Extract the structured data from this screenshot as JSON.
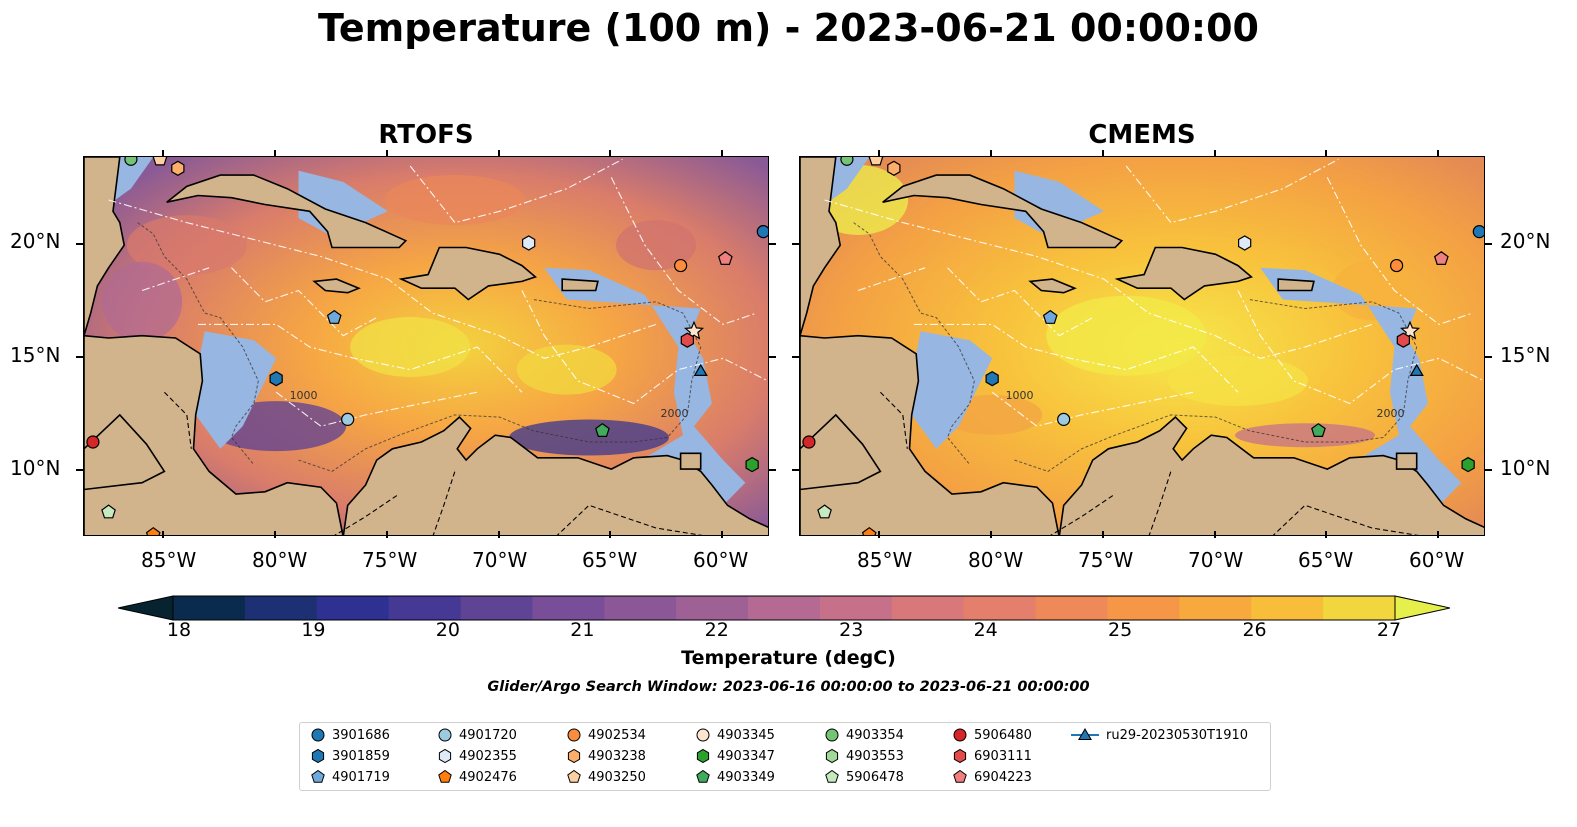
{
  "title": "Temperature (100 m) - 2023-06-21 00:00:00",
  "panels": [
    {
      "title": "RTOFS"
    },
    {
      "title": "CMEMS"
    }
  ],
  "axes": {
    "lon_ticks": [
      "85°W",
      "80°W",
      "75°W",
      "70°W",
      "65°W",
      "60°W"
    ],
    "lat_ticks": [
      "20°N",
      "15°N",
      "10°N"
    ]
  },
  "colorbar": {
    "label": "Temperature (degC)",
    "ticks": [
      "18",
      "19",
      "20",
      "21",
      "22",
      "23",
      "24",
      "25",
      "26",
      "27"
    ],
    "colors": [
      "#06232f",
      "#0b2b4e",
      "#1c3073",
      "#2e3192",
      "#463895",
      "#5f4395",
      "#774e97",
      "#8b5796",
      "#9f6096",
      "#b46a93",
      "#c67189",
      "#d8787b",
      "#e47f6c",
      "#ef8959",
      "#f69748",
      "#f8a93d",
      "#f8be3a",
      "#f2d63d",
      "#e6f04c"
    ]
  },
  "contour_labels": [
    "1000",
    "2000"
  ],
  "search_window": "Glider/Argo Search Window: 2023-06-16 00:00:00 to 2023-06-21 00:00:00",
  "legend": [
    {
      "label": "3901686",
      "marker": "circle",
      "color": "#1f77b4"
    },
    {
      "label": "3901859",
      "marker": "hexagon",
      "color": "#1f77b4"
    },
    {
      "label": "4901719",
      "marker": "pentagon",
      "color": "#6fa8dc"
    },
    {
      "label": "4901720",
      "marker": "circle",
      "color": "#9ecae1"
    },
    {
      "label": "4902355",
      "marker": "hexagon",
      "color": "#deebf7"
    },
    {
      "label": "4902476",
      "marker": "pentagon",
      "color": "#ff7f0e"
    },
    {
      "label": "4902534",
      "marker": "circle",
      "color": "#fd8d3c"
    },
    {
      "label": "4903238",
      "marker": "hexagon",
      "color": "#fdae6b"
    },
    {
      "label": "4903250",
      "marker": "pentagon",
      "color": "#fdd0a2"
    },
    {
      "label": "4903345",
      "marker": "circle",
      "color": "#fee6ce"
    },
    {
      "label": "4903347",
      "marker": "hexagon",
      "color": "#2ca02c"
    },
    {
      "label": "4903349",
      "marker": "pentagon",
      "color": "#41ab5d"
    },
    {
      "label": "4903354",
      "marker": "circle",
      "color": "#74c476"
    },
    {
      "label": "4903553",
      "marker": "hexagon",
      "color": "#a1d99b"
    },
    {
      "label": "5906478",
      "marker": "pentagon",
      "color": "#c7e9c0"
    },
    {
      "label": "5906480",
      "marker": "circle",
      "color": "#d62728"
    },
    {
      "label": "6903111",
      "marker": "hexagon",
      "color": "#e34a4a"
    },
    {
      "label": "6904223",
      "marker": "pentagon",
      "color": "#f07f7f"
    },
    {
      "label": "ru29-20230530T1910",
      "marker": "triangle-line",
      "color": "#1f77b4"
    }
  ]
}
